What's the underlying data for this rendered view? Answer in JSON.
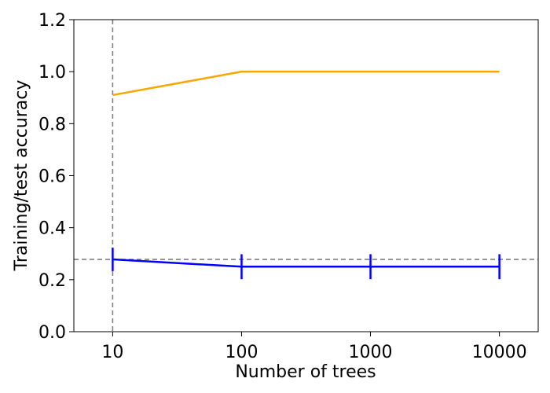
{
  "chart_data": {
    "type": "line",
    "xlabel": "Number of trees",
    "ylabel": "Training/test accuracy",
    "x_scale": "log",
    "xlim": [
      5,
      20000
    ],
    "ylim": [
      0,
      1.2
    ],
    "x_ticks": [
      10,
      100,
      1000,
      10000
    ],
    "x_tick_labels": [
      "10",
      "100",
      "1000",
      "10000"
    ],
    "y_ticks": [
      0.0,
      0.2,
      0.4,
      0.6,
      0.8,
      1.0,
      1.2
    ],
    "y_tick_labels": [
      "0.0",
      "0.2",
      "0.4",
      "0.6",
      "0.8",
      "1.0",
      "1.2"
    ],
    "grid": false,
    "series": [
      {
        "color": "#FFA500",
        "x": [
          10,
          100,
          1000,
          10000
        ],
        "values": [
          0.91,
          1.0,
          1.0,
          1.0
        ]
      },
      {
        "color": "#0000FF",
        "x": [
          10,
          100,
          1000,
          10000
        ],
        "values": [
          0.278,
          0.25,
          0.25,
          0.25
        ],
        "error": [
          0.045,
          0.048,
          0.048,
          0.048
        ]
      }
    ],
    "reference_lines": [
      {
        "orientation": "horizontal",
        "value": 0.278,
        "style": "dashed",
        "color": "#808080"
      },
      {
        "orientation": "vertical",
        "value": 10,
        "style": "dashed",
        "color": "#808080"
      }
    ]
  }
}
